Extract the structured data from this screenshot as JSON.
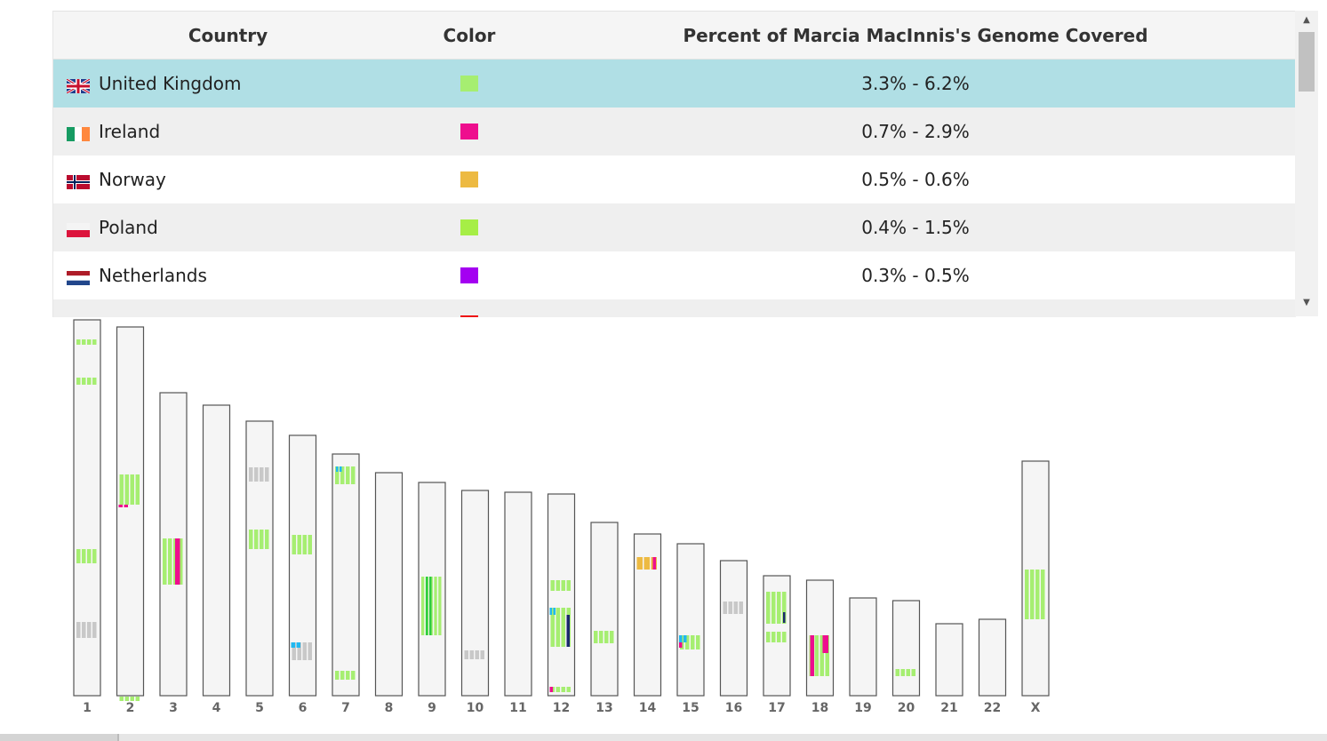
{
  "table": {
    "headers": {
      "country": "Country",
      "color": "Color",
      "percent": "Percent of Marcia MacInnis's Genome Covered"
    },
    "rows": [
      {
        "country": "United Kingdom",
        "flag": "uk-flag-icon",
        "color": "#a6ee71",
        "range": "3.3% - 6.2%",
        "selected": true
      },
      {
        "country": "Ireland",
        "flag": "ireland-flag-icon",
        "color": "#ee0e8e",
        "range": "0.7% - 2.9%",
        "selected": false
      },
      {
        "country": "Norway",
        "flag": "norway-flag-icon",
        "color": "#edba42",
        "range": "0.5% - 0.6%",
        "selected": false
      },
      {
        "country": "Poland",
        "flag": "poland-flag-icon",
        "color": "#a6ee46",
        "range": "0.4% - 1.5%",
        "selected": false
      },
      {
        "country": "Netherlands",
        "flag": "netherlands-flag-icon",
        "color": "#a400f1",
        "range": "0.3% - 0.5%",
        "selected": false
      },
      {
        "country": "",
        "flag": "italy-flag-icon",
        "color": "#ee1111",
        "range": "",
        "selected": false
      }
    ]
  },
  "chromosome_labels": [
    "1",
    "2",
    "3",
    "4",
    "5",
    "6",
    "7",
    "8",
    "9",
    "10",
    "11",
    "12",
    "13",
    "14",
    "15",
    "16",
    "17",
    "18",
    "19",
    "20",
    "21",
    "22",
    "X"
  ],
  "colors": {
    "chromosome_fill": "#f5f5f5",
    "chromosome_border": "#555555",
    "selected_row": "#b0dfe5",
    "unassigned_segment": "#c8c8c8",
    "dark_segment": "#1a2a6c",
    "cyan_segment": "#21b8f0",
    "green_segment": "#2ecc40"
  }
}
